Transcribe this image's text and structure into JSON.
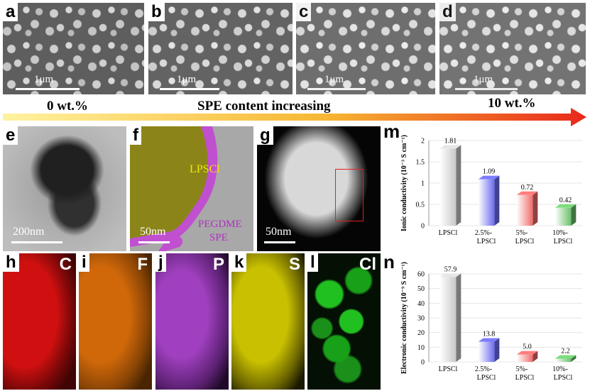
{
  "sem_panels": [
    {
      "label": "a",
      "scale": "1μm"
    },
    {
      "label": "b",
      "scale": "1μm"
    },
    {
      "label": "c",
      "scale": "1μm"
    },
    {
      "label": "d",
      "scale": "1μm"
    }
  ],
  "arrow": {
    "left_text": "0 wt.%",
    "center_text": "SPE content increasing",
    "right_text": "10 wt.%",
    "start_color": "#fff3a0",
    "end_color": "#e8281c"
  },
  "tem_panels": [
    {
      "label": "e",
      "scale": "200nm"
    },
    {
      "label": "f",
      "scale": "50nm",
      "region1": "LPSCl",
      "region2_line1": "PEGDME",
      "region2_line2": "SPE"
    },
    {
      "label": "g",
      "scale": "50nm"
    }
  ],
  "eds_maps": [
    {
      "label": "h",
      "element": "C",
      "color": "#d01010"
    },
    {
      "label": "i",
      "element": "F",
      "color": "#e07010"
    },
    {
      "label": "j",
      "element": "P",
      "color": "#a040c0"
    },
    {
      "label": "k",
      "element": "S",
      "color": "#c8c000"
    },
    {
      "label": "l",
      "element": "Cl",
      "color": "#20c020"
    }
  ],
  "chart_data": [
    {
      "type": "bar",
      "panel_label": "m",
      "categories": [
        "LPSCl",
        "2.5%-LPSCl",
        "5%-LPSCl",
        "10%-LPSCl"
      ],
      "tick_lines": [
        [
          "LPSCl"
        ],
        [
          "2.5%-",
          "LPSCl"
        ],
        [
          "5%-",
          "LPSCl"
        ],
        [
          "10%-",
          "LPSCl"
        ]
      ],
      "values": [
        1.81,
        1.09,
        0.72,
        0.42
      ],
      "value_labels": [
        "1.81",
        "1.09",
        "0.72",
        "0.42"
      ],
      "ylabel": "Ionic conductivity (10⁻³ S cm⁻¹)",
      "ylim": [
        0,
        2
      ],
      "yticks": [
        "0",
        "0.5",
        "1",
        "1.5",
        "2"
      ],
      "colors": [
        "#c8c8c8",
        "#6c6cf0",
        "#f06c6c",
        "#6cc06c"
      ],
      "grid": true
    },
    {
      "type": "bar",
      "panel_label": "n",
      "categories": [
        "LPSCl",
        "2.5%-LPSCl",
        "5%-LPSCl",
        "10%-LPSCl"
      ],
      "tick_lines": [
        [
          "LPSCl"
        ],
        [
          "2.5%-",
          "LPSCl"
        ],
        [
          "5%-",
          "LPSCl"
        ],
        [
          "10%-",
          "LPSCl"
        ]
      ],
      "values": [
        57.9,
        13.8,
        5.0,
        2.2
      ],
      "value_labels": [
        "57.9",
        "13.8",
        "5.0",
        "2.2"
      ],
      "ylabel": "Electronic conductivity (10⁻⁹ S cm⁻¹)",
      "ylim": [
        0,
        60
      ],
      "yticks": [
        "0",
        "10",
        "20",
        "30",
        "40",
        "50",
        "60"
      ],
      "colors": [
        "#c8c8c8",
        "#6c6cf0",
        "#f06c6c",
        "#6cc06c"
      ],
      "grid": true
    }
  ]
}
